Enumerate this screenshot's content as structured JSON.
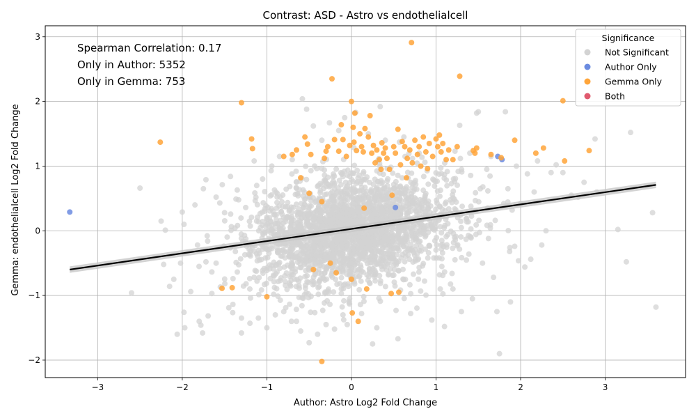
{
  "chart_data": {
    "type": "scatter",
    "title": "Contrast: ASD - Astro vs endothelialcell",
    "xlabel": "Author: Astro Log2 Fold Change",
    "ylabel": "Gemma: endothelialcell Log2 Fold Change",
    "xlim": [
      -3.62,
      3.95
    ],
    "ylim": [
      -2.27,
      3.17
    ],
    "xticks": [
      -3,
      -2,
      -1,
      0,
      1,
      2,
      3
    ],
    "yticks": [
      -2,
      -1,
      0,
      1,
      2,
      3
    ],
    "xtick_labels": [
      "−3",
      "−2",
      "−1",
      "0",
      "1",
      "2",
      "3"
    ],
    "ytick_labels": [
      "−2",
      "−1",
      "0",
      "1",
      "2",
      "3"
    ],
    "grid": true,
    "legend": {
      "title": "Significance",
      "placement": "top-right",
      "entries": [
        {
          "label": "Not Significant",
          "color": "#d3d3d3"
        },
        {
          "label": "Author Only",
          "color": "#6b8be0"
        },
        {
          "label": "Gemma Only",
          "color": "#ffa53a"
        },
        {
          "label": "Both",
          "color": "#e05a6e"
        }
      ]
    },
    "annotations": [
      "Spearman Correlation: 0.17",
      "Only in Author: 5352",
      "Only in Gemma: 753"
    ],
    "regression_line": {
      "x": [
        -3.33,
        3.6
      ],
      "y": [
        -0.6,
        0.71
      ],
      "color": "#000000"
    },
    "series": [
      {
        "name": "Not Significant",
        "color": "#d3d3d3",
        "points": [
          [
            -2.6,
            -0.96
          ],
          [
            -2.5,
            0.66
          ],
          [
            -2.25,
            0.15
          ],
          [
            -2.2,
            0.01
          ],
          [
            -2.22,
            -0.52
          ],
          [
            -2.15,
            -0.86
          ],
          [
            -2.06,
            -1.6
          ],
          [
            -1.98,
            -1.26
          ],
          [
            -1.97,
            -1.5
          ],
          [
            -2.0,
            0.29
          ],
          [
            -1.98,
            0.1
          ],
          [
            -1.85,
            0.4
          ],
          [
            -1.8,
            -1.4
          ],
          [
            -1.78,
            -1.46
          ],
          [
            -1.76,
            -1.58
          ],
          [
            -1.72,
            0.79
          ],
          [
            -1.75,
            0.65
          ],
          [
            -1.7,
            -0.16
          ],
          [
            -1.65,
            -0.97
          ],
          [
            -1.6,
            0.52
          ],
          [
            -1.55,
            -0.87
          ],
          [
            -1.5,
            0.28
          ],
          [
            -1.45,
            -1.19
          ],
          [
            -1.43,
            0.84
          ],
          [
            -1.35,
            0.63
          ],
          [
            -1.3,
            -1.35
          ],
          [
            -1.3,
            -1.58
          ],
          [
            -1.2,
            -1.43
          ],
          [
            -1.15,
            1.08
          ],
          [
            -1.12,
            0.7
          ],
          [
            -1.1,
            -1.35
          ],
          [
            -1.05,
            0.8
          ],
          [
            -1.0,
            -1.5
          ],
          [
            -0.95,
            0.93
          ],
          [
            -0.9,
            -1.3
          ],
          [
            -0.85,
            1.15
          ],
          [
            -0.8,
            -1.25
          ],
          [
            -0.75,
            0.2
          ],
          [
            -0.7,
            1.1
          ],
          [
            -0.65,
            -1.4
          ],
          [
            -0.6,
            -1.55
          ],
          [
            -0.58,
            2.04
          ],
          [
            -0.53,
            1.88
          ],
          [
            -0.5,
            -1.73
          ],
          [
            -0.45,
            1.62
          ],
          [
            -0.4,
            -1.6
          ],
          [
            -0.35,
            1.4
          ],
          [
            -0.3,
            -1.45
          ],
          [
            -0.26,
            1.67
          ],
          [
            -0.2,
            -1.52
          ],
          [
            -0.15,
            1.55
          ],
          [
            -0.1,
            -1.3
          ],
          [
            -0.08,
            1.75
          ],
          [
            -0.05,
            -1.45
          ],
          [
            0.05,
            1.83
          ],
          [
            0.12,
            -1.28
          ],
          [
            0.2,
            1.5
          ],
          [
            0.25,
            -1.75
          ],
          [
            0.3,
            -1.5
          ],
          [
            0.34,
            1.92
          ],
          [
            0.4,
            1.4
          ],
          [
            0.55,
            -1.67
          ],
          [
            0.62,
            1.45
          ],
          [
            0.7,
            -1.28
          ],
          [
            0.8,
            1.2
          ],
          [
            0.95,
            -1.38
          ],
          [
            1.05,
            -0.9
          ],
          [
            1.1,
            -1.48
          ],
          [
            1.2,
            -0.9
          ],
          [
            1.28,
            1.63
          ],
          [
            1.3,
            -1.25
          ],
          [
            1.4,
            1.2
          ],
          [
            1.43,
            -1.05
          ],
          [
            1.48,
            1.82
          ],
          [
            1.5,
            1.84
          ],
          [
            1.55,
            -0.5
          ],
          [
            1.6,
            0.95
          ],
          [
            1.65,
            1.15
          ],
          [
            1.68,
            -0.72
          ],
          [
            1.72,
            -1.25
          ],
          [
            1.75,
            -1.9
          ],
          [
            1.8,
            0.42
          ],
          [
            1.82,
            1.84
          ],
          [
            1.85,
            0.65
          ],
          [
            1.88,
            -1.1
          ],
          [
            1.9,
            0.32
          ],
          [
            1.93,
            -0.24
          ],
          [
            1.95,
            1.0
          ],
          [
            2.0,
            0.42
          ],
          [
            2.08,
            0.88
          ],
          [
            2.12,
            -0.44
          ],
          [
            2.16,
            0.6
          ],
          [
            2.2,
            1.08
          ],
          [
            2.25,
            -0.22
          ],
          [
            2.3,
            0.0
          ],
          [
            2.36,
            0.9
          ],
          [
            2.42,
            1.02
          ],
          [
            2.5,
            0.9
          ],
          [
            2.6,
            0.55
          ],
          [
            2.68,
            0.52
          ],
          [
            2.75,
            0.75
          ],
          [
            2.88,
            1.42
          ],
          [
            2.9,
            0.6
          ],
          [
            3.15,
            0.02
          ],
          [
            3.25,
            -0.48
          ],
          [
            3.3,
            1.52
          ],
          [
            3.56,
            0.28
          ],
          [
            3.6,
            -1.18
          ],
          [
            2.05,
            -0.56
          ],
          [
            1.7,
            0.16
          ],
          [
            1.62,
            -0.12
          ],
          [
            -2.1,
            -0.75
          ],
          [
            -2.02,
            -0.5
          ],
          [
            -1.9,
            -0.94
          ],
          [
            -1.82,
            -0.22
          ],
          [
            -1.6,
            -0.5
          ],
          [
            -1.4,
            -0.74
          ],
          [
            -1.25,
            0.36
          ],
          [
            -1.15,
            -0.72
          ]
        ]
      },
      {
        "name": "Author Only",
        "color": "#6b8be0",
        "points": [
          [
            -3.33,
            0.29
          ],
          [
            1.73,
            1.15
          ],
          [
            1.78,
            1.1
          ],
          [
            0.52,
            0.36
          ]
        ]
      },
      {
        "name": "Gemma Only",
        "color": "#ffa53a",
        "points": [
          [
            -2.26,
            1.37
          ],
          [
            -1.3,
            1.98
          ],
          [
            -1.18,
            1.42
          ],
          [
            -1.17,
            1.27
          ],
          [
            -1.53,
            -0.89
          ],
          [
            -1.41,
            -0.88
          ],
          [
            -1.0,
            -1.02
          ],
          [
            -0.8,
            1.15
          ],
          [
            -0.65,
            1.25
          ],
          [
            -0.6,
            0.82
          ],
          [
            -0.55,
            1.45
          ],
          [
            -0.52,
            1.34
          ],
          [
            -0.48,
            1.18
          ],
          [
            -0.45,
            -0.6
          ],
          [
            -0.35,
            -2.02
          ],
          [
            -0.32,
            1.12
          ],
          [
            -0.3,
            1.23
          ],
          [
            -0.28,
            1.3
          ],
          [
            -0.25,
            -0.5
          ],
          [
            -0.23,
            2.35
          ],
          [
            -0.2,
            1.41
          ],
          [
            -0.18,
            -0.65
          ],
          [
            -0.15,
            1.23
          ],
          [
            -0.12,
            1.64
          ],
          [
            -0.1,
            1.41
          ],
          [
            -0.06,
            1.15
          ],
          [
            -0.02,
            1.32
          ],
          [
            0.0,
            2.0
          ],
          [
            0.01,
            -1.27
          ],
          [
            0.02,
            1.6
          ],
          [
            0.03,
            1.37
          ],
          [
            0.04,
            1.82
          ],
          [
            0.06,
            1.24
          ],
          [
            0.08,
            -1.4
          ],
          [
            0.1,
            1.5
          ],
          [
            0.12,
            1.3
          ],
          [
            0.14,
            1.22
          ],
          [
            0.16,
            1.58
          ],
          [
            0.18,
            -0.9
          ],
          [
            0.2,
            1.45
          ],
          [
            0.22,
            1.78
          ],
          [
            0.24,
            1.2
          ],
          [
            0.26,
            1.32
          ],
          [
            0.28,
            1.05
          ],
          [
            0.3,
            1.25
          ],
          [
            0.33,
            1.1
          ],
          [
            0.36,
            1.36
          ],
          [
            0.38,
            1.2
          ],
          [
            0.4,
            1.28
          ],
          [
            0.42,
            1.12
          ],
          [
            0.45,
            0.95
          ],
          [
            0.47,
            -0.97
          ],
          [
            0.5,
            1.3
          ],
          [
            0.52,
            1.2
          ],
          [
            0.55,
            1.57
          ],
          [
            0.56,
            -0.95
          ],
          [
            0.6,
            1.38
          ],
          [
            0.63,
            1.3
          ],
          [
            0.66,
            1.12
          ],
          [
            0.69,
            1.25
          ],
          [
            0.71,
            2.91
          ],
          [
            0.72,
            1.05
          ],
          [
            0.75,
            1.4
          ],
          [
            0.78,
            1.18
          ],
          [
            0.8,
            1.3
          ],
          [
            0.82,
            1.0
          ],
          [
            0.85,
            1.45
          ],
          [
            0.88,
            1.22
          ],
          [
            0.92,
            1.35
          ],
          [
            0.96,
            1.15
          ],
          [
            1.0,
            1.42
          ],
          [
            1.02,
            1.3
          ],
          [
            1.04,
            1.48
          ],
          [
            1.06,
            1.22
          ],
          [
            1.08,
            1.35
          ],
          [
            1.12,
            1.1
          ],
          [
            1.15,
            1.25
          ],
          [
            1.2,
            1.1
          ],
          [
            1.25,
            1.3
          ],
          [
            1.28,
            2.39
          ],
          [
            1.44,
            1.24
          ],
          [
            1.46,
            1.2
          ],
          [
            1.48,
            1.28
          ],
          [
            1.65,
            1.18
          ],
          [
            1.77,
            1.13
          ],
          [
            1.93,
            1.4
          ],
          [
            2.18,
            1.2
          ],
          [
            2.27,
            1.28
          ],
          [
            2.5,
            2.01
          ],
          [
            2.52,
            1.08
          ],
          [
            2.81,
            1.24
          ],
          [
            0.0,
            -0.75
          ],
          [
            -0.5,
            0.58
          ],
          [
            0.35,
            0.95
          ],
          [
            0.65,
            0.82
          ],
          [
            -0.35,
            0.45
          ],
          [
            0.15,
            0.35
          ],
          [
            0.48,
            0.55
          ],
          [
            -0.7,
            1.18
          ],
          [
            0.9,
            0.96
          ],
          [
            0.58,
            1.02
          ]
        ]
      },
      {
        "name": "Both",
        "color": "#e05a6e",
        "points": []
      }
    ]
  }
}
